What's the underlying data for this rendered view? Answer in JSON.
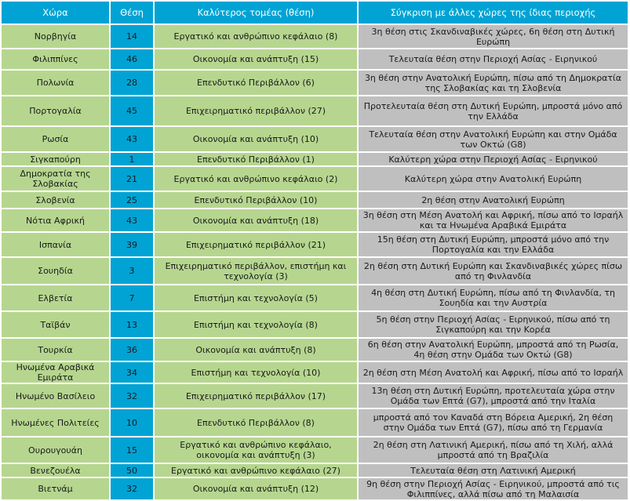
{
  "headers": [
    "Χώρα",
    "Θέση",
    "Καλύτερος τομέας (θέση)",
    "Σύγκριση με άλλες χώρες της  ίδιας περιοχής"
  ],
  "rows": [
    {
      "country": "Νορβηγία",
      "rank": "14",
      "sector": "Εργατικό και ανθρώπινο κεφάλαιο (8)",
      "comparison": "3η θέση στις  Σκανδιναβικές χώρες,  6η θέση στη Δυτική Ευρώπη"
    },
    {
      "country": "Φιλιππίνες",
      "rank": "46",
      "sector": "Οικονομία και ανάπτυξη (15)",
      "comparison": "Τελευταία θέση στην Περιοχή Ασίας - Ειρηνικού"
    },
    {
      "country": "Πολωνία",
      "rank": "28",
      "sector": "Επενδυτικό Περιβάλλον (6)",
      "comparison": "3η θέση στην Ανατολική Ευρώπη, πίσω από τη Δημοκρατία της Σλοβακίας και τη Σλοβενία"
    },
    {
      "country": "Πορτογαλία",
      "rank": "45",
      "sector": "Επιχειρηματικό περιβάλλον (27)",
      "comparison": "Προτελευταία θέση στη Δυτική Ευρώπη, μπροστά  μόνο από την Ελλάδα"
    },
    {
      "country": "Ρωσία",
      "rank": "43",
      "sector": "Οικονομία και ανάπτυξη (10)",
      "comparison": "Τελευταία θέση στην Ανατολική Ευρώπη και στην Ομάδα των Οκτώ (G8)"
    },
    {
      "country": "Σιγκαπούρη",
      "rank": "1",
      "sector": "Επενδυτικό Περιβάλλον (1)",
      "comparison": "Καλύτερη χώρα στην Περιοχή Ασίας - Ειρηνικού"
    },
    {
      "country": "Δημοκρατία της Σλοβακίας",
      "rank": "21",
      "sector": "Εργατικό και ανθρώπινο κεφάλαιο (2)",
      "comparison": "Καλύτερη χώρα στην Ανατολική Ευρώπη"
    },
    {
      "country": "Σλοβενία",
      "rank": "25",
      "sector": "Επενδυτικό Περιβάλλον (10)",
      "comparison": "2η θέση στην Ανατολική Ευρώπη"
    },
    {
      "country": "Νότια Αφρική",
      "rank": "43",
      "sector": "Οικονομία και ανάπτυξη (18)",
      "comparison": "3η θέση στη Μέση Ανατολή και Αφρική, πίσω από το Ισραήλ και τα Ηνωμένα Αραβικά Εμιράτα"
    },
    {
      "country": "Ισπανία",
      "rank": "39",
      "sector": "Επιχειρηματικό περιβάλλον (21)",
      "comparison": "15η θέση στη Δυτική Ευρώπη, μπροστά μόνο από την Πορτογαλία και την Ελλάδα"
    },
    {
      "country": "Σουηδία",
      "rank": "3",
      "sector": "Επιχειρηματικό περιβάλλον, επιστήμη και τεχνολογία (3)",
      "comparison": "2η θέση στη Δυτική Ευρώπη και Σκανδιναβικές χώρες πίσω από τη Φινλανδία"
    },
    {
      "country": "Ελβετία",
      "rank": "7",
      "sector": "Επιστήμη και τεχνολογία (5)",
      "comparison": "4η θέση στη Δυτική Ευρώπη, πίσω από τη Φινλανδία, τη Σουηδία και την Αυστρία"
    },
    {
      "country": "Ταϊβάν",
      "rank": "13",
      "sector": "Επιστήμη και τεχνολογία (8)",
      "comparison": "5η θέση στην Περιοχή Ασίας - Ειρηνικού, πίσω από τη Σιγκαπούρη και την Κορέα"
    },
    {
      "country": "Τουρκία",
      "rank": "36",
      "sector": "Οικονομία και ανάπτυξη (8)",
      "comparison": "6η θέση στην Ανατολική Ευρώπη, μπροστά από τη Ρωσία, 4η θέση στην Ομάδα των Οκτώ (G8)"
    },
    {
      "country": "Ηνωμένα Αραβικά Εμιράτα",
      "rank": "34",
      "sector": "Επιστήμη και τεχνολογία (10)",
      "comparison": "2η θέση στη Μέση Ανατολή και Αφρική, πίσω από το Ισραήλ"
    },
    {
      "country": "Ηνωμένο Βασίλειο",
      "rank": "32",
      "sector": "Επιχειρηματικό περιβάλλον (17)",
      "comparison": "13η θέση στη Δυτική Ευρώπη, προτελευταία χώρα στην Ομάδα των Επτά (G7), μπροστά από την Ιταλία"
    },
    {
      "country": "Ηνωμένες Πολιτείες",
      "rank": "10",
      "sector": "Επενδυτικό Περιβάλλον (8)",
      "comparison": "μπροστά από τον Καναδά στη Βόρεια Αμερική, 2η θέση στην Ομάδα των Επτά (G7), πίσω από τη Γερμανία"
    },
    {
      "country": "Ουρουγουάη",
      "rank": "15",
      "sector": "Εργατικό και ανθρώπινο κεφάλαιο, οικονομία και ανάπτυξη (3)",
      "comparison": "2η θέση στη Λατινική Αμερική, πίσω από τη Χιλή, αλλά μπροστά από τη Βραζιλία"
    },
    {
      "country": "Βενεζουέλα",
      "rank": "50",
      "sector": "Εργατικό και ανθρώπινο κεφάλαιο (27)",
      "comparison": "Τελευταία θέση στη Λατινική Αμερική"
    },
    {
      "country": "Βιετνάμ",
      "rank": "32",
      "sector": "Οικονομία και ανάπτυξη (12)",
      "comparison": "9η θέση στην Περιοχή Ασίας - Ειρηνικού, μπροστά από τις Φιλιππίνες, αλλά πίσω από τη Μαλαισία"
    }
  ]
}
